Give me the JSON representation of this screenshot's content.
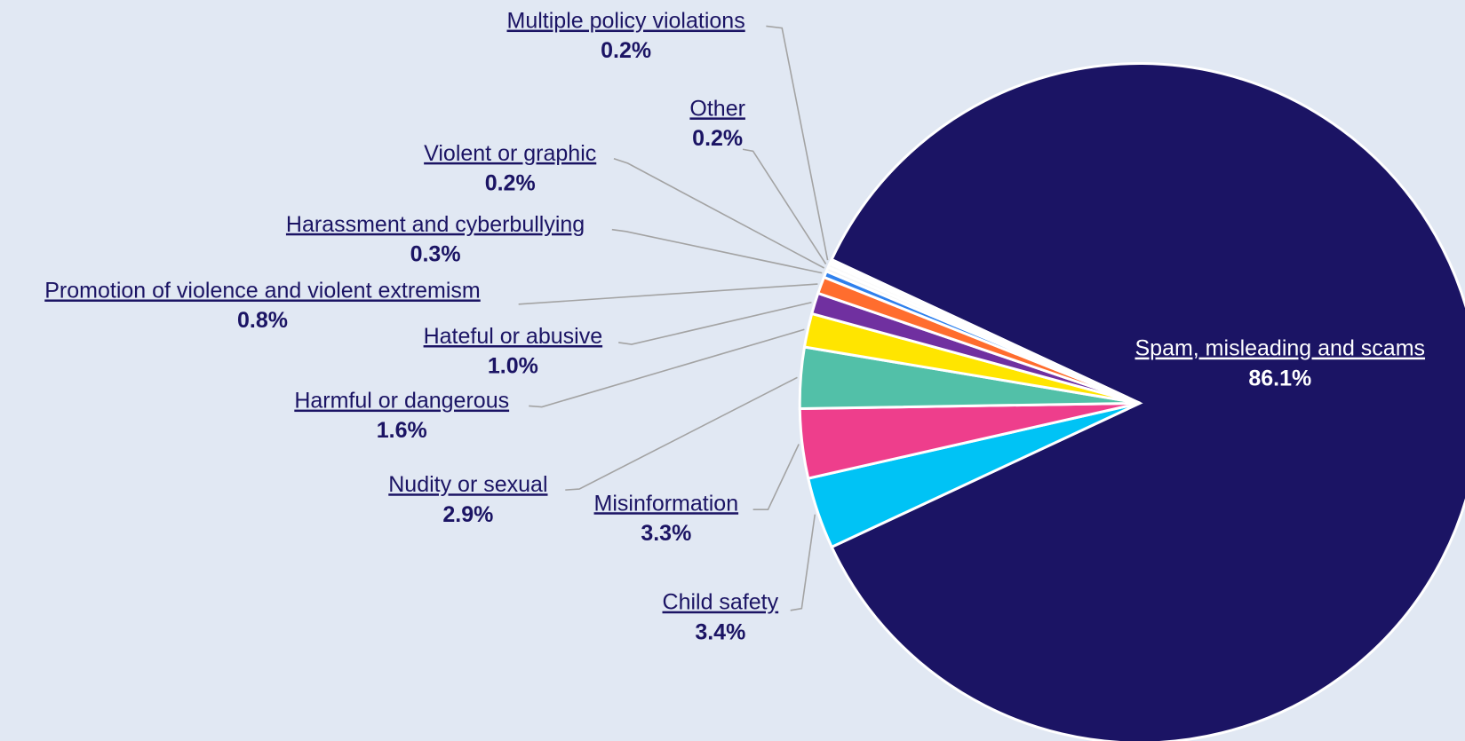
{
  "chart_data": {
    "type": "pie",
    "categories": [
      "Spam, misleading and scams",
      "Child safety",
      "Misinformation",
      "Nudity or sexual",
      "Harmful or dangerous",
      "Hateful or abusive",
      "Promotion of violence and violent extremism",
      "Harassment and cyberbullying",
      "Violent or graphic",
      "Other",
      "Multiple policy violations"
    ],
    "values": [
      86.1,
      3.4,
      3.3,
      2.9,
      1.6,
      1.0,
      0.8,
      0.3,
      0.2,
      0.2,
      0.2
    ],
    "value_labels": [
      "86.1%",
      "3.4%",
      "3.3%",
      "2.9%",
      "1.6%",
      "1.0%",
      "0.8%",
      "0.3%",
      "0.2%",
      "0.2%",
      "0.2%"
    ],
    "colors": [
      "#1b1464",
      "#00c3f5",
      "#ee3e8c",
      "#52c0a8",
      "#ffe500",
      "#7030a0",
      "#ff6d2e",
      "#2f80ed",
      "#f4f4f4",
      "#fafafa",
      "#ffffff"
    ]
  }
}
